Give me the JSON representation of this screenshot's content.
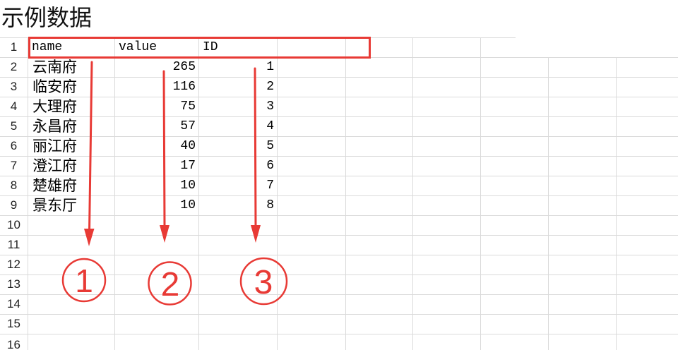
{
  "title": "示例数据",
  "colors": {
    "annotation": "#e83a35",
    "gridline": "#dadada"
  },
  "sheet": {
    "row_numbers": [
      1,
      2,
      3,
      4,
      5,
      6,
      7,
      8,
      9,
      10,
      11,
      12,
      13,
      14,
      15,
      16
    ],
    "columns": [
      "name",
      "value",
      "ID"
    ],
    "rows": [
      {
        "name": "云南府",
        "value": 265,
        "id": 1
      },
      {
        "name": "临安府",
        "value": 116,
        "id": 2
      },
      {
        "name": "大理府",
        "value": 75,
        "id": 3
      },
      {
        "name": "永昌府",
        "value": 57,
        "id": 4
      },
      {
        "name": "丽江府",
        "value": 40,
        "id": 5
      },
      {
        "name": "澄江府",
        "value": 17,
        "id": 6
      },
      {
        "name": "楚雄府",
        "value": 10,
        "id": 7
      },
      {
        "name": "景东厅",
        "value": 10,
        "id": 8
      }
    ]
  },
  "annotations": {
    "markers": [
      "1",
      "2",
      "3"
    ]
  }
}
